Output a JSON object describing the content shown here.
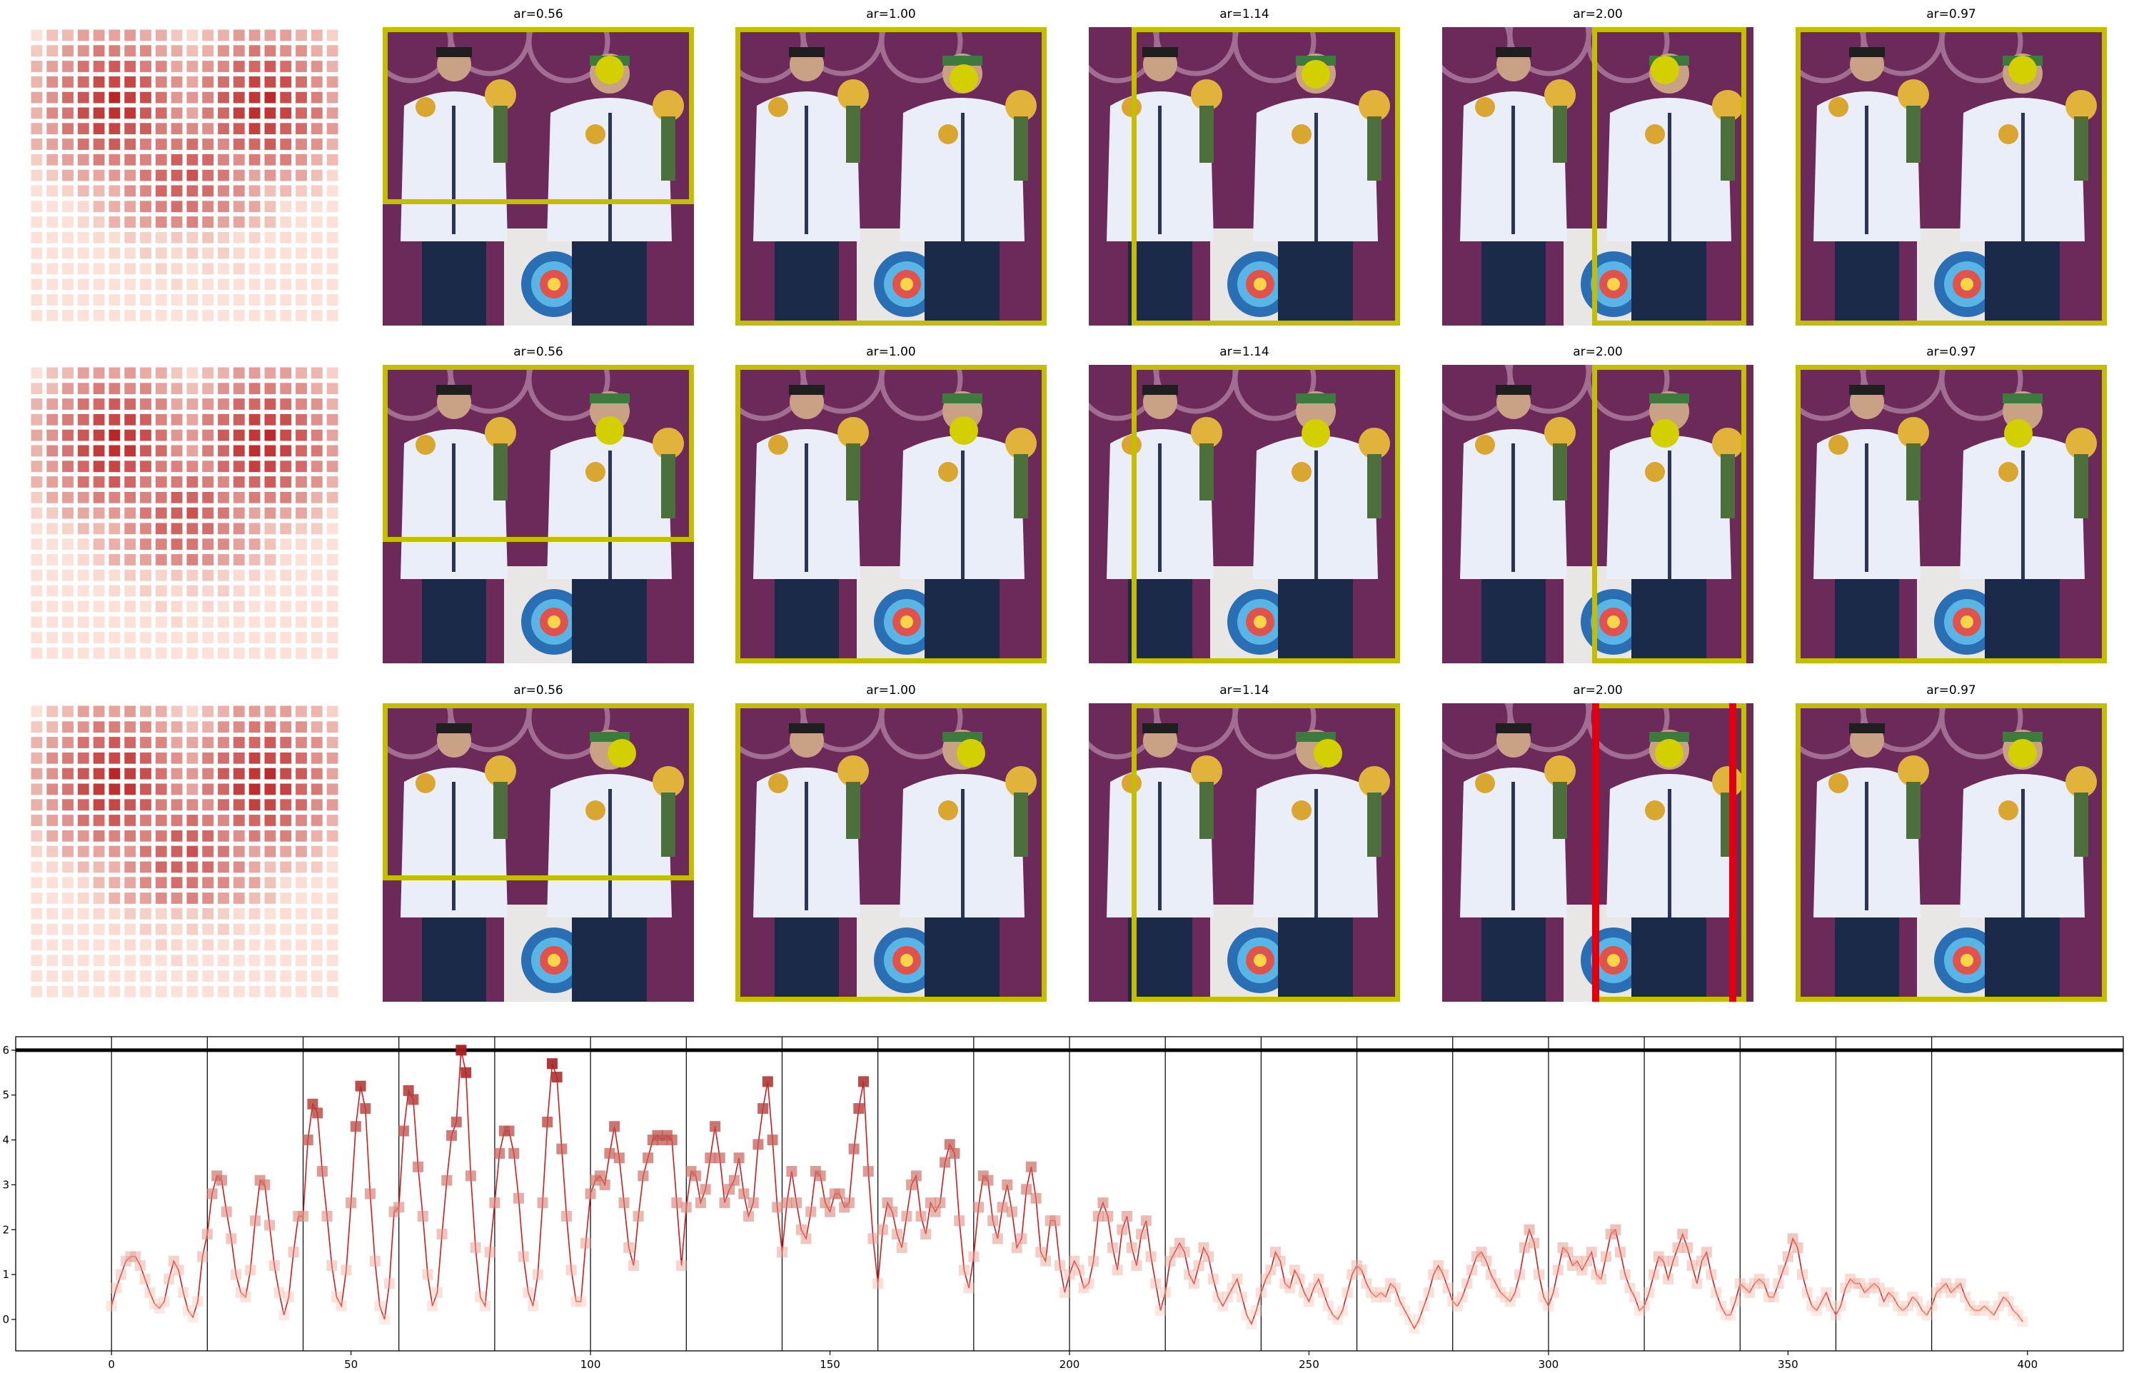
{
  "colors": {
    "box_normal": "#c4be00",
    "box_selected": "#e0000f",
    "marker": "#d4cf00",
    "line": "#d7191c",
    "photo_bg": "#6b2a5a"
  },
  "grid": [
    {
      "heat_icon": "heatmap-squares",
      "panels": [
        {
          "label": "ar=0.56",
          "selected": false
        },
        {
          "label": "ar=1.00",
          "selected": false
        },
        {
          "label": "ar=1.14",
          "selected": false
        },
        {
          "label": "ar=2.00",
          "selected": false
        },
        {
          "label": "ar=0.97",
          "selected": false
        }
      ]
    },
    {
      "heat_icon": "heatmap-squares",
      "panels": [
        {
          "label": "ar=0.56",
          "selected": false
        },
        {
          "label": "ar=1.00",
          "selected": false
        },
        {
          "label": "ar=1.14",
          "selected": false
        },
        {
          "label": "ar=2.00",
          "selected": false
        },
        {
          "label": "ar=0.97",
          "selected": false
        }
      ]
    },
    {
      "heat_icon": "heatmap-squares",
      "panels": [
        {
          "label": "ar=0.56",
          "selected": false
        },
        {
          "label": "ar=1.00",
          "selected": false
        },
        {
          "label": "ar=1.14",
          "selected": false
        },
        {
          "label": "ar=2.00",
          "selected": true
        },
        {
          "label": "ar=0.97",
          "selected": false
        }
      ]
    }
  ],
  "chart_data": {
    "type": "line",
    "title": "",
    "xlabel": "",
    "ylabel": "",
    "xlim": [
      -20,
      420
    ],
    "ylim": [
      -0.7,
      6.3
    ],
    "x_ticks": [
      0,
      50,
      100,
      150,
      200,
      250,
      300,
      350,
      400
    ],
    "y_ticks": [
      0,
      1,
      2,
      3,
      4,
      5,
      6
    ],
    "threshold": 6.0,
    "vlines": [
      0,
      20,
      40,
      60,
      80,
      100,
      120,
      140,
      160,
      180,
      200,
      220,
      240,
      260,
      280,
      300,
      320,
      340,
      360,
      380
    ],
    "grid": false,
    "series": [
      {
        "marker": "square",
        "x_start": 0,
        "x_step": 1,
        "values": [
          0.3,
          0.7,
          1.0,
          1.3,
          1.4,
          1.4,
          1.2,
          0.9,
          0.6,
          0.35,
          0.25,
          0.4,
          0.9,
          1.3,
          1.1,
          0.6,
          0.2,
          0.05,
          0.4,
          1.4,
          1.9,
          2.8,
          3.2,
          3.1,
          2.4,
          1.8,
          1.0,
          0.6,
          0.5,
          1.1,
          2.2,
          3.1,
          3.0,
          2.1,
          1.2,
          0.6,
          0.1,
          0.5,
          1.5,
          2.3,
          2.3,
          4.0,
          4.8,
          4.6,
          3.3,
          2.3,
          1.2,
          0.5,
          0.3,
          1.1,
          2.6,
          4.3,
          5.2,
          4.7,
          2.8,
          1.3,
          0.3,
          0.0,
          0.8,
          2.4,
          2.5,
          4.2,
          5.1,
          4.9,
          3.4,
          2.3,
          1.0,
          0.3,
          0.6,
          1.9,
          3.1,
          4.1,
          4.4,
          6.0,
          5.5,
          3.2,
          1.6,
          0.5,
          0.3,
          1.5,
          2.6,
          3.7,
          4.2,
          4.2,
          3.7,
          2.7,
          1.4,
          0.6,
          0.3,
          1.0,
          2.6,
          4.4,
          5.7,
          5.4,
          3.8,
          2.3,
          1.1,
          0.4,
          0.4,
          1.7,
          2.8,
          3.1,
          3.2,
          3.0,
          3.7,
          4.3,
          3.6,
          2.6,
          1.6,
          1.2,
          2.3,
          3.2,
          3.6,
          4.0,
          4.1,
          4.0,
          4.1,
          4.0,
          2.6,
          1.2,
          2.5,
          3.3,
          3.2,
          2.6,
          2.9,
          3.6,
          4.3,
          3.6,
          2.6,
          2.9,
          3.1,
          3.6,
          2.8,
          2.3,
          2.6,
          3.9,
          4.7,
          5.3,
          4.0,
          2.5,
          1.5,
          2.6,
          3.3,
          2.6,
          2.0,
          1.8,
          2.4,
          3.3,
          3.2,
          2.6,
          2.4,
          2.8,
          2.8,
          2.5,
          2.6,
          3.8,
          4.7,
          5.3,
          3.3,
          1.8,
          0.8,
          2.0,
          2.6,
          2.4,
          1.9,
          1.6,
          2.3,
          3.0,
          3.2,
          2.3,
          1.9,
          2.6,
          2.4,
          2.6,
          3.5,
          3.9,
          3.7,
          2.2,
          1.1,
          0.7,
          1.4,
          2.5,
          3.2,
          3.1,
          2.2,
          1.8,
          2.5,
          3.0,
          2.4,
          1.6,
          1.8,
          2.9,
          3.4,
          2.7,
          1.5,
          1.3,
          2.2,
          2.2,
          1.2,
          0.6,
          1.0,
          1.3,
          1.1,
          0.7,
          0.8,
          1.3,
          2.3,
          2.6,
          2.3,
          1.6,
          1.1,
          2.0,
          2.3,
          1.6,
          1.2,
          1.9,
          2.2,
          1.4,
          0.8,
          0.2,
          0.6,
          1.3,
          1.5,
          1.7,
          1.5,
          1.0,
          0.8,
          1.2,
          1.6,
          1.4,
          0.9,
          0.5,
          0.3,
          0.5,
          0.7,
          0.9,
          0.5,
          0.1,
          -0.1,
          0.2,
          0.6,
          0.9,
          1.1,
          1.5,
          1.3,
          0.8,
          0.7,
          1.1,
          0.9,
          0.6,
          0.4,
          0.7,
          0.9,
          0.6,
          0.3,
          0.1,
          0.0,
          0.2,
          0.6,
          1.0,
          1.2,
          1.1,
          0.8,
          0.6,
          0.5,
          0.6,
          0.5,
          0.8,
          0.7,
          0.4,
          0.2,
          0.0,
          -0.2,
          0.0,
          0.3,
          0.6,
          1.0,
          1.2,
          1.0,
          0.7,
          0.4,
          0.3,
          0.5,
          0.8,
          1.1,
          1.4,
          1.5,
          1.3,
          1.0,
          0.8,
          0.6,
          0.5,
          0.4,
          0.6,
          1.0,
          1.6,
          2.0,
          1.7,
          1.0,
          0.5,
          0.3,
          0.6,
          1.1,
          1.6,
          1.5,
          1.2,
          1.3,
          1.1,
          1.3,
          1.5,
          1.0,
          0.9,
          1.4,
          1.9,
          2.0,
          1.5,
          1.0,
          0.7,
          0.5,
          0.2,
          0.3,
          0.6,
          1.0,
          1.4,
          1.3,
          0.9,
          1.3,
          1.6,
          1.9,
          1.6,
          1.2,
          0.8,
          1.3,
          1.5,
          1.0,
          0.6,
          0.3,
          0.1,
          0.1,
          0.4,
          0.8,
          0.7,
          0.6,
          0.8,
          0.9,
          0.8,
          0.5,
          0.5,
          0.8,
          1.1,
          1.4,
          1.8,
          1.6,
          1.0,
          0.6,
          0.3,
          0.2,
          0.4,
          0.6,
          0.3,
          0.1,
          0.3,
          0.7,
          0.9,
          0.8,
          0.8,
          0.6,
          0.7,
          0.8,
          0.7,
          0.4,
          0.6,
          0.5,
          0.3,
          0.2,
          0.3,
          0.5,
          0.4,
          0.2,
          0.1,
          0.3,
          0.6,
          0.7,
          0.8,
          0.6,
          0.7,
          0.8,
          0.5,
          0.3,
          0.2,
          0.2,
          0.3,
          0.2,
          0.1,
          0.3,
          0.5,
          0.4,
          0.2,
          0.1,
          -0.05
        ]
      }
    ]
  }
}
